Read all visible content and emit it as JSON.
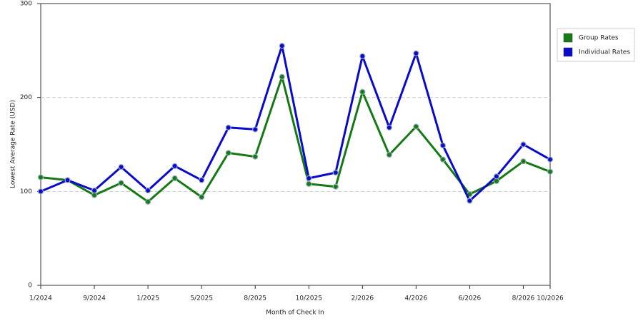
{
  "chart_data": {
    "type": "line",
    "x_label": "Month of Check In",
    "y_label": "Lowest Average Rate (USD)",
    "categories": [
      "1/2024",
      null,
      "9/2024",
      null,
      "1/2025",
      null,
      "5/2025",
      null,
      "8/2025",
      null,
      "10/2025",
      null,
      "2/2026",
      null,
      "4/2026",
      null,
      "6/2026",
      null,
      "8/2026",
      "10/2026"
    ],
    "series": [
      {
        "name": "Group Rates",
        "color": "#157a15",
        "values": [
          115,
          112,
          96,
          109,
          89,
          114,
          94,
          141,
          137,
          222,
          108,
          105,
          206,
          139,
          169,
          134,
          97,
          111,
          132,
          121
        ]
      },
      {
        "name": "Individual Rates",
        "color": "#0a0acc",
        "values": [
          100,
          112,
          101,
          126,
          101,
          127,
          112,
          168,
          166,
          255,
          114,
          120,
          244,
          168,
          247,
          149,
          90,
          116,
          150,
          134
        ]
      }
    ],
    "ylim": [
      0,
      300
    ],
    "yticks": [
      0,
      100,
      200,
      300
    ],
    "grid": true,
    "legend": "right"
  }
}
